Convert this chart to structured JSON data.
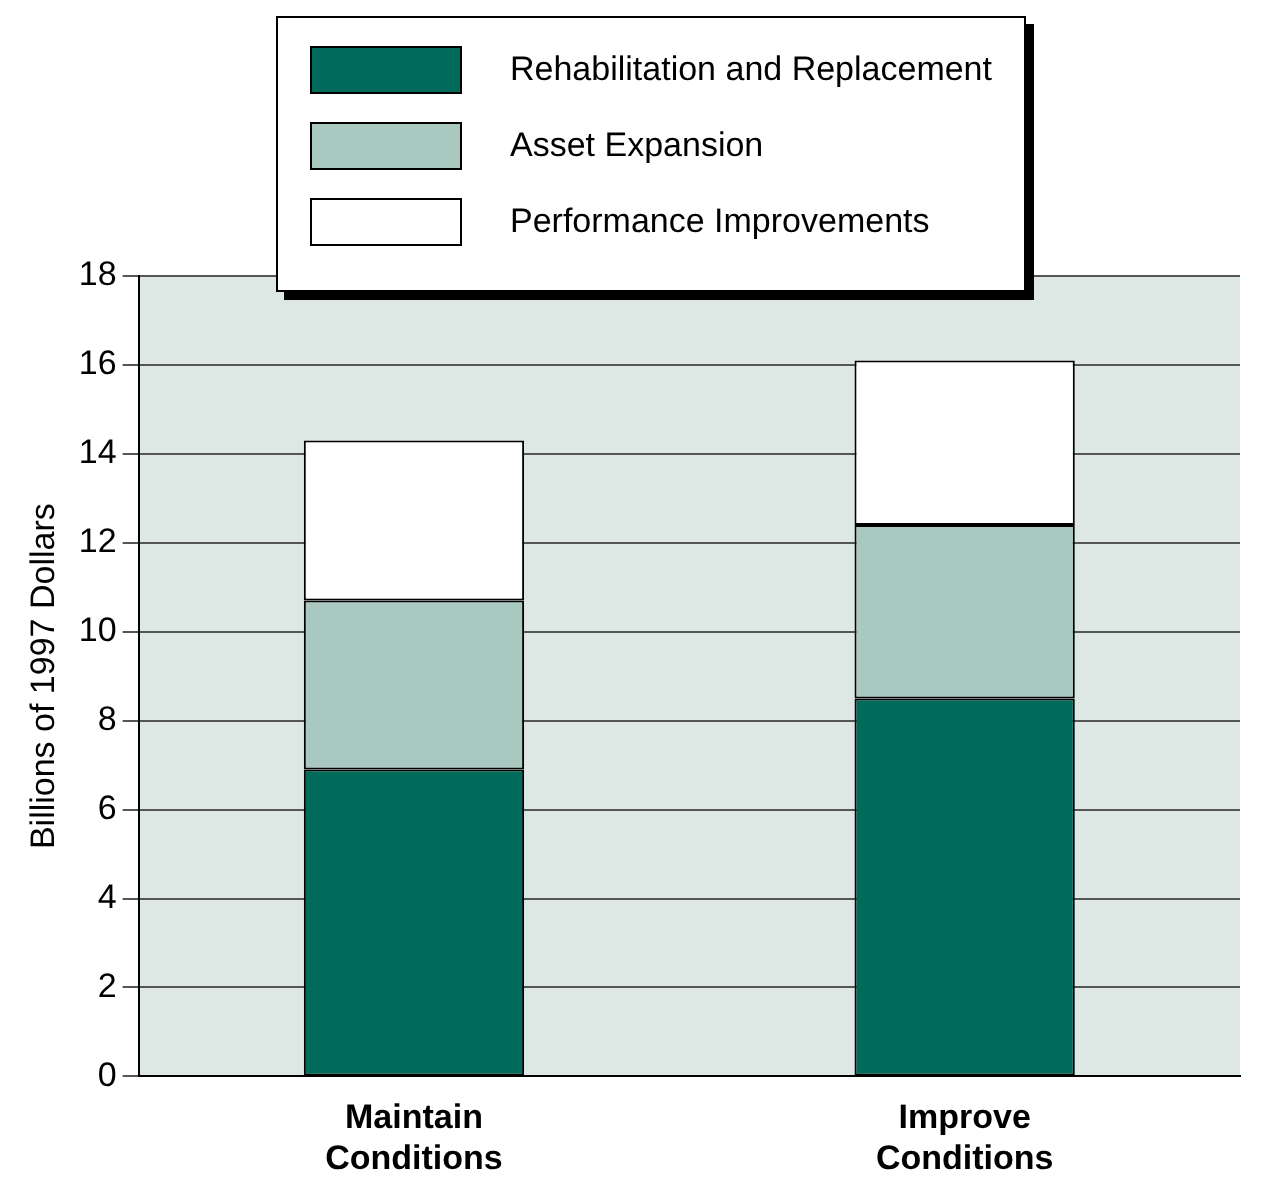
{
  "chart_data": {
    "type": "bar",
    "stacked": true,
    "ylabel": "Billions of 1997 Dollars",
    "categories": [
      "Maintain Conditions",
      "Improve Conditions"
    ],
    "series": [
      {
        "name": "Rehabilitation and Replacement",
        "color": "#006b5a",
        "values": [
          6.9,
          8.5
        ]
      },
      {
        "name": "Asset Expansion",
        "color": "#a8c8c0",
        "values": [
          3.8,
          3.9
        ]
      },
      {
        "name": "Performance Improvements",
        "color": "#ffffff",
        "values": [
          3.6,
          3.7
        ]
      }
    ],
    "ylim": [
      0,
      18
    ],
    "yticks": [
      0,
      2,
      4,
      6,
      8,
      10,
      12,
      14,
      16,
      18
    ],
    "grid": "y",
    "legend": "top"
  }
}
